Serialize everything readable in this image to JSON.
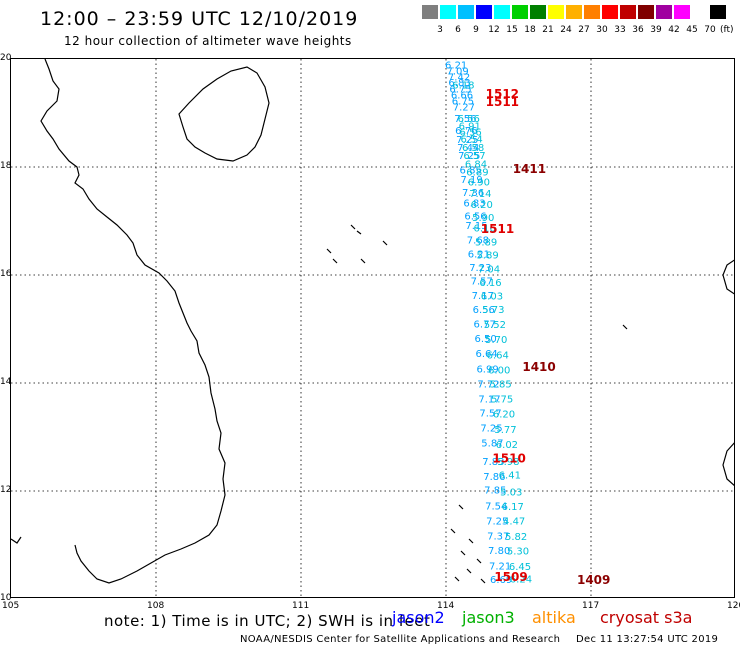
{
  "header": {
    "title": "12:00 – 23:59 UTC 12/10/2019",
    "subtitle": "12 hour collection of altimeter wave heights"
  },
  "legend": {
    "colors": [
      "#7f7f7f",
      "#00ffff",
      "#00c0ff",
      "#0000ff",
      "#00ffff",
      "#00d000",
      "#008000",
      "#ffff00",
      "#ffb000",
      "#ff7f00",
      "#ff0000",
      "#c00000",
      "#800000",
      "#a000a0",
      "#ff00ff",
      "#ffffff",
      "#000000"
    ],
    "labels": [
      "3",
      "6",
      "9",
      "12",
      "15",
      "18",
      "21",
      "24",
      "27",
      "30",
      "33",
      "36",
      "39",
      "42",
      "45",
      "70"
    ],
    "unit": "(ft)"
  },
  "axes": {
    "x_ticks": [
      "105",
      "108",
      "111",
      "114",
      "117",
      "120"
    ],
    "y_ticks": [
      "20",
      "18",
      "16",
      "14",
      "12",
      "10"
    ]
  },
  "wave_colors": {
    "descending": "#00a0ff",
    "ascending": "#00c0d8",
    "time_dark": "#8b0000",
    "time_red": "#e00000"
  },
  "tracks": {
    "descending": [
      {
        "lon": 113.98,
        "lat": 19.82,
        "v": "6.21"
      },
      {
        "lon": 114.01,
        "lat": 19.71,
        "v": "7.09"
      },
      {
        "lon": 114.04,
        "lat": 19.6,
        "v": "7.42"
      },
      {
        "lon": 114.05,
        "lat": 19.5,
        "v": "6.83"
      },
      {
        "lon": 114.07,
        "lat": 19.38,
        "v": "6.75"
      },
      {
        "lon": 114.1,
        "lat": 19.27,
        "v": "6.66"
      },
      {
        "lon": 114.12,
        "lat": 19.16,
        "v": "6.75"
      },
      {
        "lon": 114.14,
        "lat": 19.05,
        "v": "7.27"
      },
      {
        "lon": 114.17,
        "lat": 18.83,
        "v": "7.56"
      },
      {
        "lon": 114.19,
        "lat": 18.61,
        "v": "6.76"
      },
      {
        "lon": 114.21,
        "lat": 18.44,
        "v": "7.25"
      },
      {
        "lon": 114.23,
        "lat": 18.3,
        "v": "7.44"
      },
      {
        "lon": 114.25,
        "lat": 18.15,
        "v": "7.25"
      },
      {
        "lon": 114.28,
        "lat": 17.88,
        "v": "6.85"
      },
      {
        "lon": 114.3,
        "lat": 17.7,
        "v": "7.19"
      },
      {
        "lon": 114.33,
        "lat": 17.46,
        "v": "7.36"
      },
      {
        "lon": 114.36,
        "lat": 17.27,
        "v": "6.83"
      },
      {
        "lon": 114.38,
        "lat": 17.03,
        "v": "6.56"
      },
      {
        "lon": 114.4,
        "lat": 16.85,
        "v": "7.15"
      },
      {
        "lon": 114.43,
        "lat": 16.58,
        "v": "7.68"
      },
      {
        "lon": 114.45,
        "lat": 16.32,
        "v": "6.21"
      },
      {
        "lon": 114.48,
        "lat": 16.07,
        "v": "7.23"
      },
      {
        "lon": 114.51,
        "lat": 15.82,
        "v": "7.57"
      },
      {
        "lon": 114.53,
        "lat": 15.56,
        "v": "7.17"
      },
      {
        "lon": 114.55,
        "lat": 15.3,
        "v": "6.56"
      },
      {
        "lon": 114.57,
        "lat": 15.03,
        "v": "6.77"
      },
      {
        "lon": 114.59,
        "lat": 14.76,
        "v": "6.50"
      },
      {
        "lon": 114.61,
        "lat": 14.48,
        "v": "6.64"
      },
      {
        "lon": 114.63,
        "lat": 14.19,
        "v": "6.99"
      },
      {
        "lon": 114.65,
        "lat": 13.92,
        "v": "7.72"
      },
      {
        "lon": 114.67,
        "lat": 13.64,
        "v": "7.17"
      },
      {
        "lon": 114.69,
        "lat": 13.38,
        "v": "7.57"
      },
      {
        "lon": 114.71,
        "lat": 13.1,
        "v": "7.25"
      },
      {
        "lon": 114.73,
        "lat": 12.82,
        "v": "5.87"
      },
      {
        "lon": 114.75,
        "lat": 12.48,
        "v": "7.83"
      },
      {
        "lon": 114.77,
        "lat": 12.2,
        "v": "7.86"
      },
      {
        "lon": 114.79,
        "lat": 11.95,
        "v": "7.85"
      },
      {
        "lon": 114.81,
        "lat": 11.66,
        "v": "7.54"
      },
      {
        "lon": 114.83,
        "lat": 11.38,
        "v": "7.25"
      },
      {
        "lon": 114.85,
        "lat": 11.1,
        "v": "7.37"
      },
      {
        "lon": 114.87,
        "lat": 10.83,
        "v": "7.80"
      },
      {
        "lon": 114.89,
        "lat": 10.55,
        "v": "7.21"
      },
      {
        "lon": 114.91,
        "lat": 10.3,
        "v": "6.69"
      }
    ],
    "ascending": [
      {
        "lon": 114.13,
        "lat": 19.45,
        "v": "6.18"
      },
      {
        "lon": 114.24,
        "lat": 18.83,
        "v": "6.56"
      },
      {
        "lon": 114.26,
        "lat": 18.69,
        "v": "6.91"
      },
      {
        "lon": 114.28,
        "lat": 18.58,
        "v": "6.56"
      },
      {
        "lon": 114.3,
        "lat": 18.45,
        "v": "6.54"
      },
      {
        "lon": 114.33,
        "lat": 18.3,
        "v": "6.58"
      },
      {
        "lon": 114.36,
        "lat": 18.15,
        "v": "6.57"
      },
      {
        "lon": 114.39,
        "lat": 17.99,
        "v": "6.84"
      },
      {
        "lon": 114.42,
        "lat": 17.84,
        "v": "6.89"
      },
      {
        "lon": 114.45,
        "lat": 17.66,
        "v": "6.90"
      },
      {
        "lon": 114.48,
        "lat": 17.44,
        "v": "7.14"
      },
      {
        "lon": 114.51,
        "lat": 17.24,
        "v": "6.20"
      },
      {
        "lon": 114.54,
        "lat": 17.0,
        "v": "5.90"
      },
      {
        "lon": 114.57,
        "lat": 16.81,
        "v": "6.16"
      },
      {
        "lon": 114.6,
        "lat": 16.55,
        "v": "5.89"
      },
      {
        "lon": 114.63,
        "lat": 16.31,
        "v": "5.89"
      },
      {
        "lon": 114.66,
        "lat": 16.05,
        "v": "7.04"
      },
      {
        "lon": 114.69,
        "lat": 15.8,
        "v": "6.16"
      },
      {
        "lon": 114.72,
        "lat": 15.55,
        "v": "6.03"
      },
      {
        "lon": 114.75,
        "lat": 15.3,
        "v": "5.73"
      },
      {
        "lon": 114.78,
        "lat": 15.02,
        "v": "5.52"
      },
      {
        "lon": 114.81,
        "lat": 14.74,
        "v": "5.70"
      },
      {
        "lon": 114.84,
        "lat": 14.45,
        "v": "6.64"
      },
      {
        "lon": 114.87,
        "lat": 14.18,
        "v": "6.00"
      },
      {
        "lon": 114.9,
        "lat": 13.92,
        "v": "5.85"
      },
      {
        "lon": 114.93,
        "lat": 13.64,
        "v": "5.75"
      },
      {
        "lon": 114.97,
        "lat": 13.36,
        "v": "6.20"
      },
      {
        "lon": 115.0,
        "lat": 13.07,
        "v": "5.77"
      },
      {
        "lon": 115.03,
        "lat": 12.8,
        "v": "6.02"
      },
      {
        "lon": 115.06,
        "lat": 12.48,
        "v": "5.98"
      },
      {
        "lon": 115.09,
        "lat": 12.23,
        "v": "6.41"
      },
      {
        "lon": 115.12,
        "lat": 11.92,
        "v": "5.03"
      },
      {
        "lon": 115.15,
        "lat": 11.65,
        "v": "6.17"
      },
      {
        "lon": 115.18,
        "lat": 11.38,
        "v": "4.47"
      },
      {
        "lon": 115.22,
        "lat": 11.09,
        "v": "5.82"
      },
      {
        "lon": 115.26,
        "lat": 10.82,
        "v": "5.30"
      },
      {
        "lon": 115.3,
        "lat": 10.54,
        "v": "6.45"
      },
      {
        "lon": 115.32,
        "lat": 10.31,
        "v": "6.24"
      }
    ]
  },
  "pass_times": [
    {
      "lon": 114.82,
      "lat": 19.28,
      "t": "1512",
      "tone": "red"
    },
    {
      "lon": 114.82,
      "lat": 19.13,
      "t": "1511",
      "tone": "red"
    },
    {
      "lon": 115.38,
      "lat": 17.89,
      "t": "1411",
      "tone": "dark"
    },
    {
      "lon": 114.72,
      "lat": 16.78,
      "t": "1511",
      "tone": "red"
    },
    {
      "lon": 115.58,
      "lat": 14.22,
      "t": "1410",
      "tone": "dark"
    },
    {
      "lon": 114.96,
      "lat": 12.53,
      "t": "1510",
      "tone": "red"
    },
    {
      "lon": 115.0,
      "lat": 10.33,
      "t": "1509",
      "tone": "red"
    },
    {
      "lon": 116.71,
      "lat": 10.28,
      "t": "1409",
      "tone": "dark"
    }
  ],
  "footer": {
    "note": "note: 1) Time is in UTC; 2) SWH is in feet",
    "satellites": [
      {
        "name": "jason2",
        "color": "#0000ff"
      },
      {
        "name": "jason3",
        "color": "#00b000"
      },
      {
        "name": "altika",
        "color": "#ff9000"
      },
      {
        "name": "cryosat s3a",
        "color": "#c00000"
      }
    ],
    "credit": "NOAA/NESDIS Center for Satellite Applications and Research",
    "timestamp": "Dec 11 13:27:54 UTC 2019"
  }
}
